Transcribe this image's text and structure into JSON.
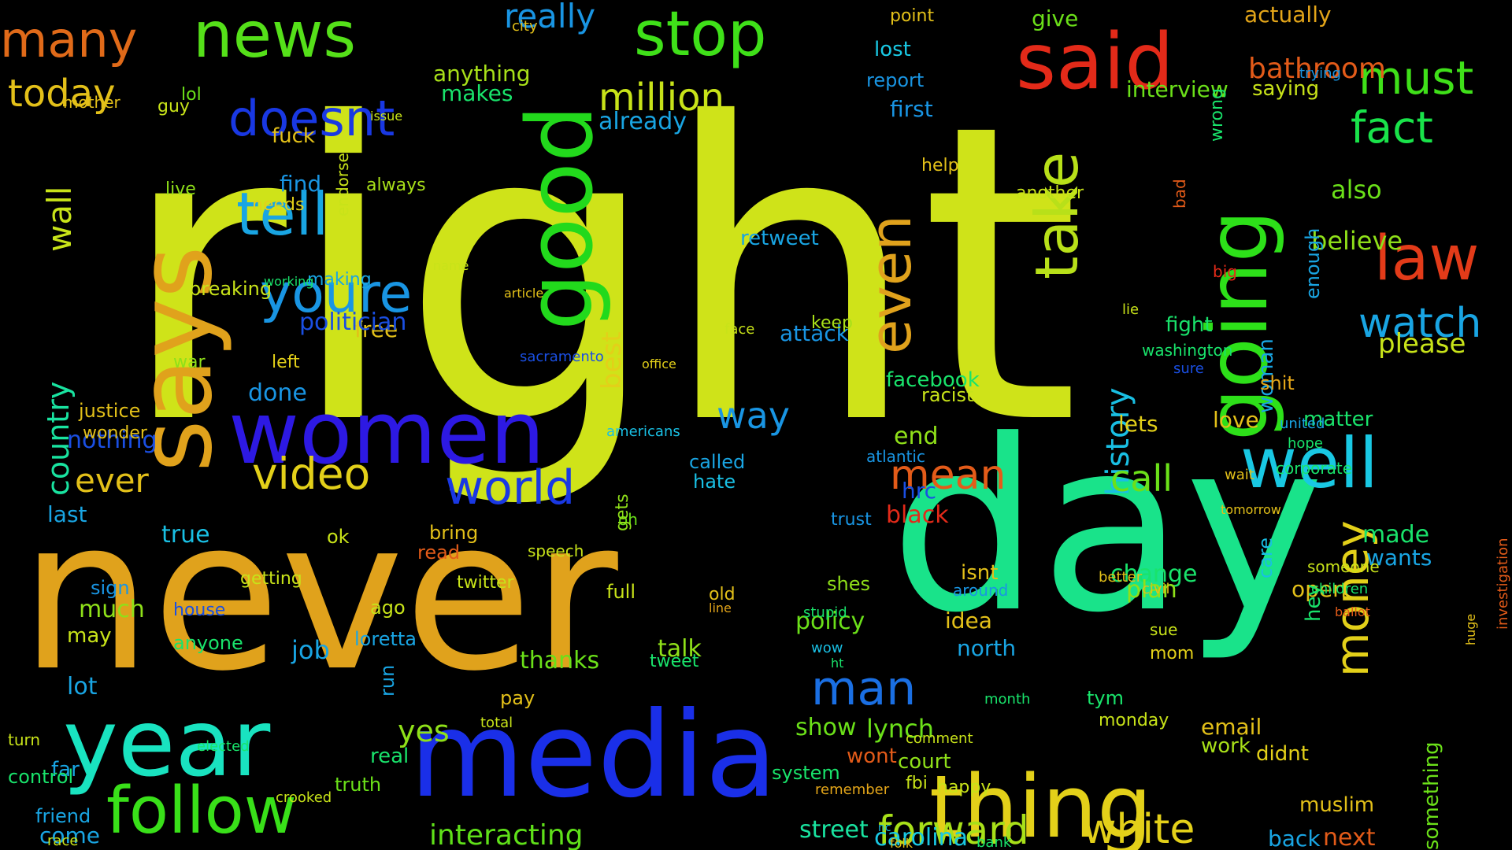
{
  "words": [
    {
      "text": "right",
      "color": "#cfe319"
    },
    {
      "text": "never",
      "color": "#e0a21c"
    },
    {
      "text": "day",
      "color": "#19e38a"
    },
    {
      "text": "media",
      "color": "#1a2fe8"
    },
    {
      "text": "women",
      "color": "#2d19e3"
    },
    {
      "text": "news",
      "color": "#55e019"
    },
    {
      "text": "many",
      "color": "#e06a19"
    },
    {
      "text": "stop",
      "color": "#3fe019"
    },
    {
      "text": "said",
      "color": "#e32a19"
    },
    {
      "text": "says",
      "color": "#e0a21c"
    },
    {
      "text": "good",
      "color": "#22d91c"
    },
    {
      "text": "going",
      "color": "#2de019"
    },
    {
      "text": "year",
      "color": "#19e3c0"
    },
    {
      "text": "thing",
      "color": "#e3d019"
    },
    {
      "text": "follow",
      "color": "#39e019"
    },
    {
      "text": "well",
      "color": "#19c8e3"
    },
    {
      "text": "tell",
      "color": "#19a5e3"
    },
    {
      "text": "take",
      "color": "#b8e019"
    },
    {
      "text": "even",
      "color": "#e0a21c"
    },
    {
      "text": "youre",
      "color": "#1995e3"
    },
    {
      "text": "video",
      "color": "#e3d019"
    },
    {
      "text": "world",
      "color": "#1938e3"
    },
    {
      "text": "white",
      "color": "#e3d019"
    },
    {
      "text": "forward",
      "color": "#a8e019"
    },
    {
      "text": "million",
      "color": "#c8e319"
    },
    {
      "text": "doesnt",
      "color": "#1938e3"
    },
    {
      "text": "must",
      "color": "#3fe019"
    },
    {
      "text": "fact",
      "color": "#19e34a"
    },
    {
      "text": "law",
      "color": "#e33b19"
    },
    {
      "text": "watch",
      "color": "#19a5e3"
    },
    {
      "text": "today",
      "color": "#e3c019"
    },
    {
      "text": "mean",
      "color": "#e35b19"
    },
    {
      "text": "man",
      "color": "#1a6fe3"
    },
    {
      "text": "really",
      "color": "#1995e3"
    },
    {
      "text": "money",
      "color": "#e3d019"
    },
    {
      "text": "history",
      "color": "#19bfe3"
    },
    {
      "text": "country",
      "color": "#19e3a0"
    },
    {
      "text": "wall",
      "color": "#c8e319"
    },
    {
      "text": "ever",
      "color": "#e3c019"
    },
    {
      "text": "way",
      "color": "#1995e3"
    },
    {
      "text": "call",
      "color": "#6be019"
    },
    {
      "text": "yes",
      "color": "#8fe019"
    },
    {
      "text": "interacting",
      "color": "#5fe019"
    },
    {
      "text": "street",
      "color": "#19e3a0"
    },
    {
      "text": "carolina",
      "color": "#19c8e3"
    },
    {
      "text": "bathroom",
      "color": "#e35b19"
    },
    {
      "text": "give",
      "color": "#6be019"
    },
    {
      "text": "actually",
      "color": "#e3a519"
    },
    {
      "text": "already",
      "color": "#19a5e3"
    },
    {
      "text": "anything",
      "color": "#a8e019"
    },
    {
      "text": "makes",
      "color": "#19e36b"
    },
    {
      "text": "first",
      "color": "#1995e3"
    },
    {
      "text": "report",
      "color": "#1995e3"
    },
    {
      "text": "lost",
      "color": "#19c8e3"
    },
    {
      "text": "point",
      "color": "#e3c019"
    },
    {
      "text": "city",
      "color": "#e3c019"
    },
    {
      "text": "saying",
      "color": "#c8e319"
    },
    {
      "text": "interview",
      "color": "#6be019"
    },
    {
      "text": "lol",
      "color": "#6be019"
    },
    {
      "text": "guy",
      "color": "#c8e319"
    },
    {
      "text": "mother",
      "color": "#e3c019"
    },
    {
      "text": "fuck",
      "color": "#e3c019"
    },
    {
      "text": "find",
      "color": "#1995e3"
    },
    {
      "text": "needs",
      "color": "#e3d019"
    },
    {
      "text": "live",
      "color": "#8fe019"
    },
    {
      "text": "always",
      "color": "#a8e019"
    },
    {
      "text": "breaking",
      "color": "#c8e319"
    },
    {
      "text": "making",
      "color": "#19a5e3"
    },
    {
      "text": "free",
      "color": "#e3c019"
    },
    {
      "text": "politician",
      "color": "#1a4fe3"
    },
    {
      "text": "done",
      "color": "#1995e3"
    },
    {
      "text": "war",
      "color": "#8fe019"
    },
    {
      "text": "left",
      "color": "#e3d019"
    },
    {
      "text": "justice",
      "color": "#e3c019"
    },
    {
      "text": "nothing",
      "color": "#1a4fe3"
    },
    {
      "text": "last",
      "color": "#19a5e3"
    },
    {
      "text": "true",
      "color": "#19bfe3"
    },
    {
      "text": "called",
      "color": "#19a5e3"
    },
    {
      "text": "hate",
      "color": "#19bfe3"
    },
    {
      "text": "best",
      "color": "#e3d019"
    },
    {
      "text": "end",
      "color": "#8fe019"
    },
    {
      "text": "hrc",
      "color": "#1a4fe3"
    },
    {
      "text": "black",
      "color": "#e32a19"
    },
    {
      "text": "change",
      "color": "#19e36b"
    },
    {
      "text": "plan",
      "color": "#8fe019"
    },
    {
      "text": "lets",
      "color": "#e3d019"
    },
    {
      "text": "matter",
      "color": "#19e36b"
    },
    {
      "text": "love",
      "color": "#e3c019"
    },
    {
      "text": "woman",
      "color": "#19a5e3"
    },
    {
      "text": "attack",
      "color": "#1995e3"
    },
    {
      "text": "believe",
      "color": "#8fe019"
    },
    {
      "text": "please",
      "color": "#c8e319"
    },
    {
      "text": "also",
      "color": "#6be019"
    },
    {
      "text": "made",
      "color": "#19e36b"
    },
    {
      "text": "wants",
      "color": "#19a5e3"
    },
    {
      "text": "open",
      "color": "#e3c019"
    },
    {
      "text": "shes",
      "color": "#8fe019"
    },
    {
      "text": "policy",
      "color": "#6be019"
    },
    {
      "text": "talk",
      "color": "#8fe019"
    },
    {
      "text": "thanks",
      "color": "#6be019"
    },
    {
      "text": "job",
      "color": "#19a5e3"
    },
    {
      "text": "much",
      "color": "#8fe019"
    },
    {
      "text": "may",
      "color": "#c8e319"
    },
    {
      "text": "lot",
      "color": "#19a5e3"
    },
    {
      "text": "far",
      "color": "#19a5e3"
    },
    {
      "text": "come",
      "color": "#19a5e3"
    },
    {
      "text": "real",
      "color": "#19e36b"
    },
    {
      "text": "truth",
      "color": "#6be019"
    },
    {
      "text": "lynch",
      "color": "#6be019"
    },
    {
      "text": "show",
      "color": "#6be019"
    },
    {
      "text": "wont",
      "color": "#e35b19"
    },
    {
      "text": "email",
      "color": "#e3c019"
    },
    {
      "text": "didnt",
      "color": "#e3d019"
    },
    {
      "text": "work",
      "color": "#a8e019"
    },
    {
      "text": "idea",
      "color": "#e3c019"
    },
    {
      "text": "north",
      "color": "#19a5e3"
    },
    {
      "text": "isnt",
      "color": "#e3c019"
    },
    {
      "text": "hey",
      "color": "#19e36b"
    },
    {
      "text": "next",
      "color": "#e35b19"
    },
    {
      "text": "back",
      "color": "#19a5e3"
    },
    {
      "text": "muslim",
      "color": "#e3c019"
    },
    {
      "text": "something",
      "color": "#6be019"
    },
    {
      "text": "enough",
      "color": "#19a5e3"
    },
    {
      "text": "another",
      "color": "#c8e319"
    },
    {
      "text": "retweet",
      "color": "#19a5e3"
    },
    {
      "text": "keep",
      "color": "#a8e019"
    },
    {
      "text": "facebook",
      "color": "#19e36b"
    },
    {
      "text": "racist",
      "color": "#c8e319"
    },
    {
      "text": "fight",
      "color": "#19e36b"
    },
    {
      "text": "shit",
      "color": "#e3a519"
    },
    {
      "text": "care",
      "color": "#19bfe3"
    },
    {
      "text": "tym",
      "color": "#19e36b"
    },
    {
      "text": "monday",
      "color": "#c8e319"
    },
    {
      "text": "mom",
      "color": "#e3d019"
    },
    {
      "text": "ago",
      "color": "#c8e319"
    },
    {
      "text": "loretta",
      "color": "#19a5e3"
    },
    {
      "text": "run",
      "color": "#19a5e3"
    },
    {
      "text": "pay",
      "color": "#e3c019"
    },
    {
      "text": "tweet",
      "color": "#19e36b"
    },
    {
      "text": "friend",
      "color": "#19a5e3"
    },
    {
      "text": "control",
      "color": "#19e36b"
    },
    {
      "text": "court",
      "color": "#8fe019"
    },
    {
      "text": "fbi",
      "color": "#c8e319"
    },
    {
      "text": "happy",
      "color": "#c8e319"
    },
    {
      "text": "system",
      "color": "#19e36b"
    },
    {
      "text": "full",
      "color": "#c8e319"
    },
    {
      "text": "twitter",
      "color": "#c8e319"
    },
    {
      "text": "read",
      "color": "#e35b19"
    },
    {
      "text": "bring",
      "color": "#e3c019"
    },
    {
      "text": "speech",
      "color": "#c8e319"
    },
    {
      "text": "oh",
      "color": "#6be019"
    },
    {
      "text": "trust",
      "color": "#1995e3"
    },
    {
      "text": "sign",
      "color": "#1995e3"
    },
    {
      "text": "getting",
      "color": "#c8e319"
    },
    {
      "text": "house",
      "color": "#1a4fe3"
    },
    {
      "text": "anyone",
      "color": "#19e36b"
    },
    {
      "text": "ok",
      "color": "#c8e319"
    },
    {
      "text": "gets",
      "color": "#8fe019"
    },
    {
      "text": "old",
      "color": "#e3c019"
    },
    {
      "text": "help",
      "color": "#e3c019"
    },
    {
      "text": "wrong",
      "color": "#19e36b"
    },
    {
      "text": "bad",
      "color": "#e35b19"
    },
    {
      "text": "big",
      "color": "#e32a19"
    },
    {
      "text": "lie",
      "color": "#c8e319"
    },
    {
      "text": "wonder",
      "color": "#e3c019"
    },
    {
      "text": "washington",
      "color": "#19e36b"
    },
    {
      "text": "sure",
      "color": "#1a4fe3"
    },
    {
      "text": "hope",
      "color": "#19e36b"
    },
    {
      "text": "corporate",
      "color": "#19e36b"
    },
    {
      "text": "united",
      "color": "#19a5e3"
    },
    {
      "text": "wait",
      "color": "#e3c019"
    },
    {
      "text": "better",
      "color": "#e3c019"
    },
    {
      "text": "civil",
      "color": "#e3c019"
    },
    {
      "text": "around",
      "color": "#1995e3"
    },
    {
      "text": "sue",
      "color": "#c8e319"
    },
    {
      "text": "atlantic",
      "color": "#1995e3"
    },
    {
      "text": "endorse",
      "color": "#c8e319"
    },
    {
      "text": "line",
      "color": "#e3a519"
    },
    {
      "text": "americans",
      "color": "#19bfe3"
    },
    {
      "text": "sacramento",
      "color": "#1a4fe3"
    },
    {
      "text": "office",
      "color": "#e3d019"
    },
    {
      "text": "face",
      "color": "#c8e319"
    },
    {
      "text": "article",
      "color": "#e3c019"
    },
    {
      "text": "working",
      "color": "#19e36b"
    },
    {
      "text": "name",
      "color": "#c8e319"
    },
    {
      "text": "issue",
      "color": "#c8e319"
    },
    {
      "text": "someone",
      "color": "#c8e319"
    },
    {
      "text": "children",
      "color": "#19e36b"
    },
    {
      "text": "ballot",
      "color": "#e35b19"
    },
    {
      "text": "stupid",
      "color": "#19e36b"
    },
    {
      "text": "wow",
      "color": "#19bfe3"
    },
    {
      "text": "ht",
      "color": "#19e36b"
    },
    {
      "text": "month",
      "color": "#19e36b"
    },
    {
      "text": "comment",
      "color": "#c8e319"
    },
    {
      "text": "remember",
      "color": "#e3a519"
    },
    {
      "text": "nc",
      "color": "#19bfe3"
    },
    {
      "text": "folk",
      "color": "#e3c019"
    },
    {
      "text": "bank",
      "color": "#19e36b"
    },
    {
      "text": "turn",
      "color": "#c8e319"
    },
    {
      "text": "elected",
      "color": "#19e36b"
    },
    {
      "text": "crooked",
      "color": "#c8e319"
    },
    {
      "text": "race",
      "color": "#c8e319"
    },
    {
      "text": "total",
      "color": "#c8e319"
    },
    {
      "text": "trying",
      "color": "#1995e3"
    },
    {
      "text": "tomorrow",
      "color": "#e3c019"
    },
    {
      "text": "investigation",
      "color": "#e35b19"
    },
    {
      "text": "huge",
      "color": "#e3c019"
    },
    {
      "text": "young",
      "color": "#e3c019"
    }
  ]
}
